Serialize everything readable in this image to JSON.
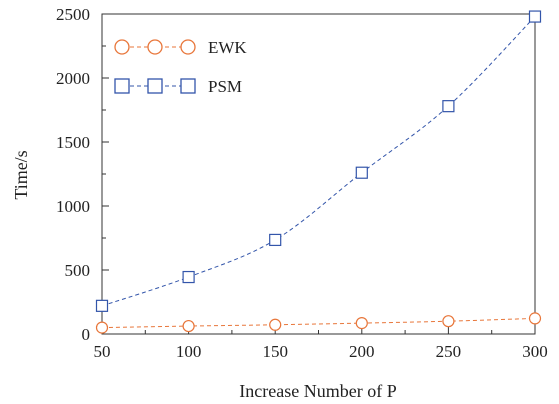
{
  "chart_data": {
    "type": "line",
    "title": "",
    "xlabel": "Increase Number of P",
    "ylabel": "Time/s",
    "x": [
      50,
      100,
      150,
      200,
      250,
      300
    ],
    "xlim": [
      50,
      300
    ],
    "ylim": [
      0,
      2500
    ],
    "xticks": [
      50,
      100,
      150,
      200,
      250,
      300
    ],
    "yticks": [
      0,
      500,
      1000,
      1500,
      2000,
      2500
    ],
    "xtick_labels": [
      "50",
      "100",
      "150",
      "200",
      "250",
      "300"
    ],
    "ytick_labels": [
      "0",
      "500",
      "1000",
      "1500",
      "2000",
      "2500"
    ],
    "grid": false,
    "legend_position": "top-left",
    "series": [
      {
        "name": "EWK",
        "marker": "circle",
        "color": "#E8763A",
        "line_style": "dashed",
        "values": [
          50,
          62,
          72,
          85,
          100,
          122
        ]
      },
      {
        "name": "PSM",
        "marker": "square",
        "color": "#3355AA",
        "line_style": "dashed",
        "values": [
          220,
          445,
          735,
          1260,
          1780,
          2480
        ]
      }
    ]
  }
}
